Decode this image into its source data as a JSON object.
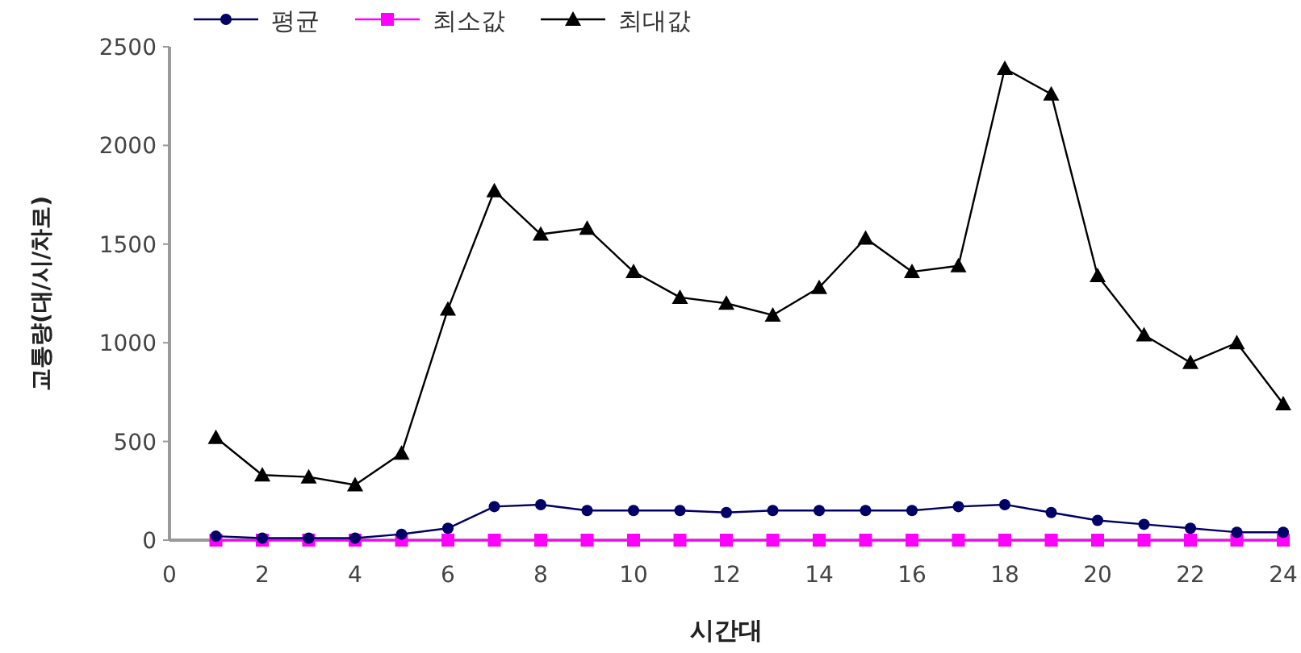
{
  "chart_data": {
    "type": "line",
    "xlabel": "시간대",
    "ylabel": "교통량(대/시/차로)",
    "x": [
      1,
      2,
      3,
      4,
      5,
      6,
      7,
      8,
      9,
      10,
      11,
      12,
      13,
      14,
      15,
      16,
      17,
      18,
      19,
      20,
      21,
      22,
      23,
      24
    ],
    "series": [
      {
        "name": "평균",
        "color": "#000066",
        "marker": "circle",
        "values": [
          20,
          10,
          10,
          10,
          30,
          60,
          170,
          180,
          150,
          150,
          150,
          140,
          150,
          150,
          150,
          150,
          170,
          180,
          140,
          100,
          80,
          60,
          40,
          40
        ]
      },
      {
        "name": "최소값",
        "color": "#ff00ff",
        "marker": "square",
        "values": [
          0,
          0,
          0,
          0,
          0,
          0,
          0,
          0,
          0,
          0,
          0,
          0,
          0,
          0,
          0,
          0,
          0,
          0,
          0,
          0,
          0,
          0,
          0,
          0
        ]
      },
      {
        "name": "최대값",
        "color": "#000000",
        "marker": "triangle",
        "values": [
          520,
          330,
          320,
          280,
          440,
          1170,
          1770,
          1550,
          1580,
          1360,
          1230,
          1200,
          1140,
          1280,
          1530,
          1360,
          1390,
          2390,
          2260,
          1340,
          1040,
          900,
          1000,
          690
        ]
      }
    ],
    "xlim": [
      0,
      24
    ],
    "xticks": [
      0,
      2,
      4,
      6,
      8,
      10,
      12,
      14,
      16,
      18,
      20,
      22,
      24
    ],
    "ylim": [
      0,
      2500
    ],
    "yticks": [
      0,
      500,
      1000,
      1500,
      2000,
      2500
    ],
    "grid": false,
    "legend": "top",
    "line_style": "solid"
  }
}
